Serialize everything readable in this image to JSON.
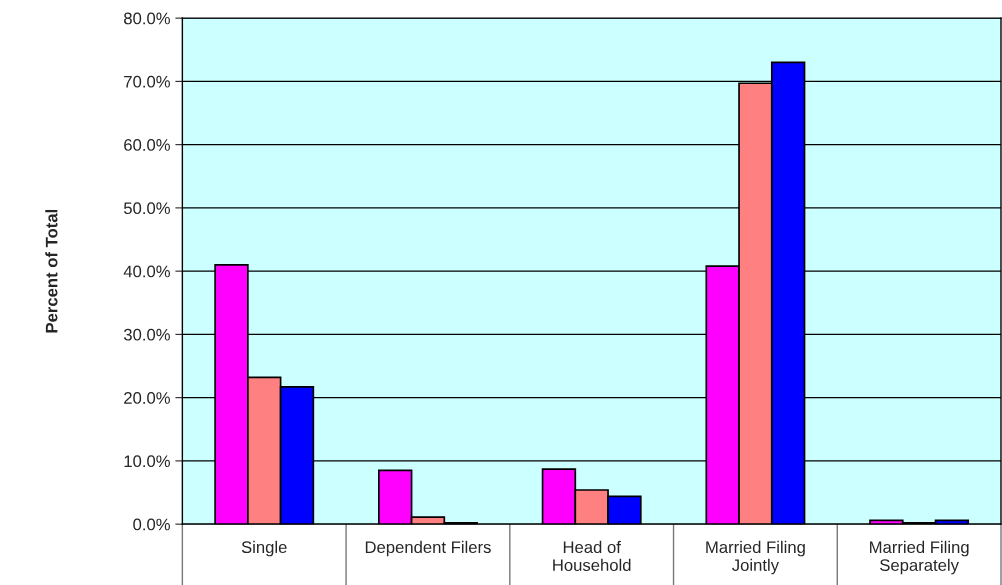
{
  "chart_data": {
    "type": "bar",
    "ylabel": "Percent of Total",
    "categories": [
      "Single",
      "Dependent Filers",
      "Head of\nHousehold",
      "Married Filing\nJointly",
      "Married Filing\nSeparately"
    ],
    "series": [
      {
        "color": "#ff00ff",
        "values": [
          41.0,
          8.5,
          8.7,
          40.8,
          0.6
        ]
      },
      {
        "color": "#ff8080",
        "values": [
          23.2,
          1.1,
          5.4,
          69.7,
          0.2
        ]
      },
      {
        "color": "#0000ff",
        "values": [
          21.7,
          0.2,
          4.4,
          73.0,
          0.6
        ]
      }
    ],
    "ylim": [
      0,
      80
    ],
    "yticks": [
      {
        "value": 0,
        "label": "0.0%"
      },
      {
        "value": 10,
        "label": "10.0%"
      },
      {
        "value": 20,
        "label": "20.0%"
      },
      {
        "value": 30,
        "label": "30.0%"
      },
      {
        "value": 40,
        "label": "40.0%"
      },
      {
        "value": 50,
        "label": "50.0%"
      },
      {
        "value": 60,
        "label": "60.0%"
      },
      {
        "value": 70,
        "label": "70.0%"
      },
      {
        "value": 80,
        "label": "80.0%"
      }
    ],
    "grid": "y",
    "legend": false
  }
}
